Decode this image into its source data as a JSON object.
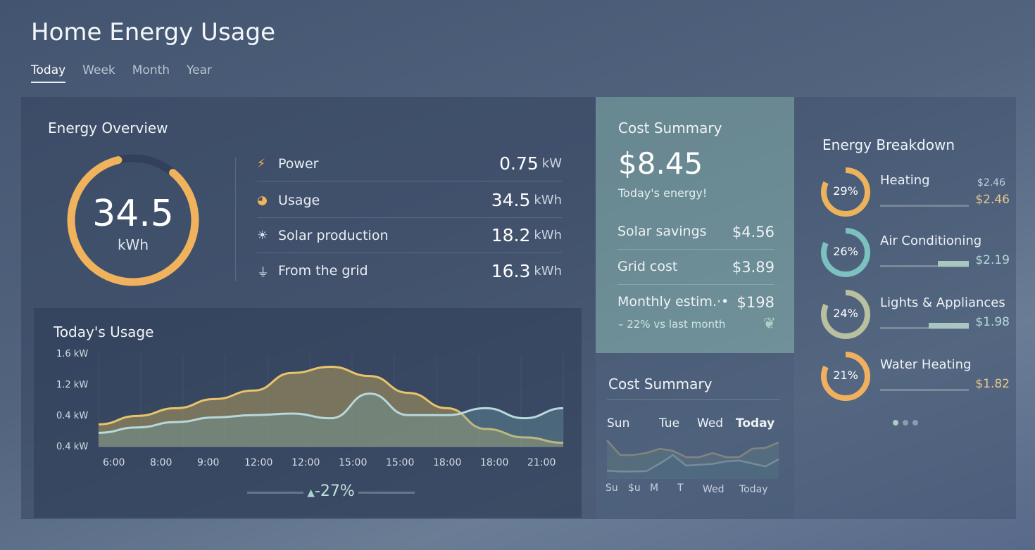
{
  "header": {
    "title": "Home Energy Usage",
    "tabs": [
      {
        "label": "Today",
        "active": true
      },
      {
        "label": "Week"
      },
      {
        "label": "Month"
      },
      {
        "label": "Year"
      }
    ]
  },
  "overview": {
    "title": "Energy Overview",
    "total": "34.5",
    "total_unit": "kWh",
    "ring_fraction": 0.85,
    "stats": [
      {
        "icon": "lightning-icon",
        "label": "Power",
        "value": "0.75",
        "unit": "kW"
      },
      {
        "icon": "pie-icon",
        "label": "Usage",
        "value": "34.5",
        "unit": "kWh"
      },
      {
        "icon": "sun-icon",
        "label": "Solar production",
        "value": "18.2",
        "unit": "kWh"
      },
      {
        "icon": "plug-icon",
        "label": "From the grid",
        "value": "16.3",
        "unit": "kWh"
      }
    ]
  },
  "usage": {
    "title": "Today's Usage",
    "change": "-27%"
  },
  "chart_data": {
    "type": "area",
    "title": "Today's Usage",
    "y_tick_labels": [
      "1.6 kW",
      "1.2 kW",
      "0.4 kW",
      "0.4 kW"
    ],
    "ylim": [
      0.4,
      1.6
    ],
    "x_tick_labels": [
      "6:00",
      "8:00",
      "9:00",
      "12:00",
      "12:00",
      "15:00",
      "15:00",
      "18:00",
      "18:00",
      "21:00"
    ],
    "grid": true,
    "series": [
      {
        "color": "#e9c46a",
        "values": [
          0.69,
          0.8,
          0.9,
          1.02,
          1.13,
          1.36,
          1.44,
          1.32,
          1.1,
          0.9,
          0.63,
          0.52,
          0.45
        ]
      },
      {
        "color": "#b8d8dc",
        "values": [
          0.58,
          0.65,
          0.72,
          0.78,
          0.81,
          0.83,
          0.77,
          1.09,
          0.81,
          0.81,
          0.9,
          0.77,
          0.9
        ]
      }
    ]
  },
  "cost_summary": {
    "title": "Cost Summary",
    "amount": "$8.45",
    "subtitle": "Today's energy!",
    "rows": [
      {
        "label": "Solar savings",
        "value": "$4.56"
      },
      {
        "label": "Grid cost",
        "value": "$3.89"
      },
      {
        "label": "Monthly estim.·•",
        "value": "$198"
      }
    ],
    "change": "– 22% vs last month"
  },
  "cost_chart": {
    "title": "Cost Summary",
    "top_labels": [
      "Sun",
      "Tue",
      "Wed",
      "Today"
    ],
    "bottom_labels": [
      "Su",
      "$u",
      "M",
      "T",
      "Wed",
      "Today"
    ],
    "upper": [
      0.9,
      0.55,
      0.55,
      0.6,
      0.7,
      0.65,
      0.5,
      0.5,
      0.6,
      0.5,
      0.5,
      0.7,
      0.72,
      0.85
    ],
    "lower": [
      0.18,
      0.16,
      0.16,
      0.17,
      0.35,
      0.55,
      0.3,
      0.32,
      0.34,
      0.4,
      0.42,
      0.35,
      0.28,
      0.45
    ]
  },
  "breakdown": {
    "title": "Energy Breakdown",
    "items": [
      {
        "name": "Heating",
        "percent": 29,
        "price_top": "$2.46",
        "price": "$2.46",
        "color": "#eeb25c",
        "price_color": "#e5c98a",
        "bar": 0.0
      },
      {
        "name": "Air Conditioning",
        "percent": 26,
        "price": "$2.19",
        "color": "#7cc0c0",
        "price_color": "#b9dad8",
        "bar": 0.35
      },
      {
        "name": "Lights & Appliances",
        "percent": 24,
        "price": "$1.98",
        "color": "#b8c0a0",
        "price_color": "#b9dad8",
        "bar": 0.45
      },
      {
        "name": "Water Heating",
        "percent": 21,
        "price": "$1.82",
        "color": "#f0b060",
        "price_color": "#e5c98a",
        "bar": 0.0
      }
    ],
    "pages": 3,
    "active_page": 0
  }
}
